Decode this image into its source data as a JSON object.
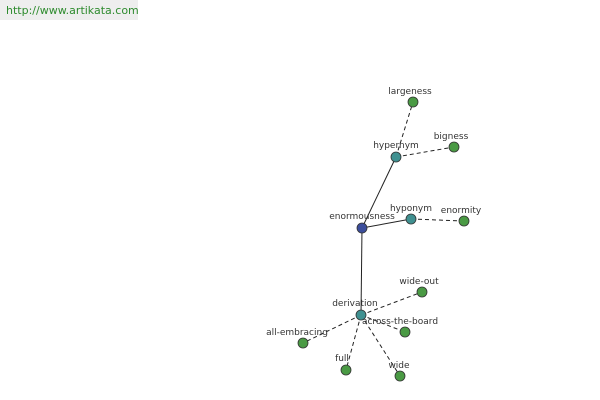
{
  "header": {
    "url": "http://www.artikata.com"
  },
  "nodes": [
    {
      "label": "enormousness"
    },
    {
      "label": "hypernym"
    },
    {
      "label": "hyponym"
    },
    {
      "label": "derivation"
    },
    {
      "label": "largeness"
    },
    {
      "label": "bigness"
    },
    {
      "label": "enormity"
    },
    {
      "label": "wide-out"
    },
    {
      "label": "across-the-board"
    },
    {
      "label": "all-embracing"
    },
    {
      "label": "full"
    },
    {
      "label": "wide"
    }
  ]
}
